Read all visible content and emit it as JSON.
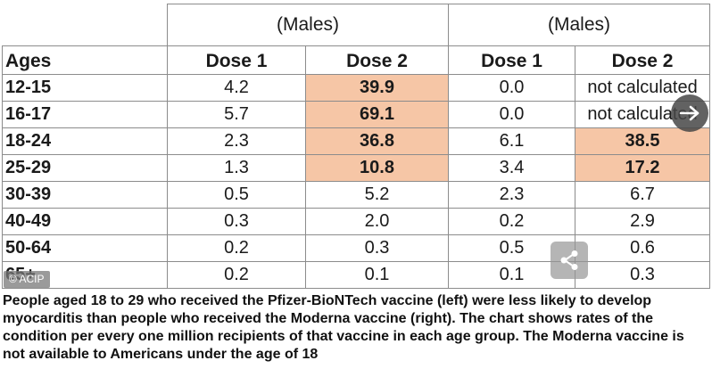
{
  "table": {
    "group_headers": [
      "(Males)",
      "(Males)"
    ],
    "column_headers": [
      "Ages",
      "Dose 1",
      "Dose 2",
      "Dose 1",
      "Dose 2"
    ],
    "rows": [
      {
        "age": "12-15",
        "p_d1": "4.2",
        "p_d2": "39.9",
        "m_d1": "0.0",
        "m_d2": "not calculated"
      },
      {
        "age": "16-17",
        "p_d1": "5.7",
        "p_d2": "69.1",
        "m_d1": "0.0",
        "m_d2": "not calculated"
      },
      {
        "age": "18-24",
        "p_d1": "2.3",
        "p_d2": "36.8",
        "m_d1": "6.1",
        "m_d2": "38.5"
      },
      {
        "age": "25-29",
        "p_d1": "1.3",
        "p_d2": "10.8",
        "m_d1": "3.4",
        "m_d2": "17.2"
      },
      {
        "age": "30-39",
        "p_d1": "0.5",
        "p_d2": "5.2",
        "m_d1": "2.3",
        "m_d2": "6.7"
      },
      {
        "age": "40-49",
        "p_d1": "0.3",
        "p_d2": "2.0",
        "m_d1": "0.2",
        "m_d2": "2.9"
      },
      {
        "age": "50-64",
        "p_d1": "0.2",
        "p_d2": "0.3",
        "m_d1": "0.5",
        "m_d2": "0.6"
      },
      {
        "age": "65+",
        "p_d1": "0.2",
        "p_d2": "0.1",
        "m_d1": "0.1",
        "m_d2": "0.3"
      }
    ],
    "highlight_color": "#f6c6a6"
  },
  "image_credit": "© ACIP",
  "icons": {
    "next": "arrow-right-icon",
    "share": "share-icon"
  },
  "caption": "People aged 18 to 29 who received the Pfizer-BioNTech vaccine (left) were less likely to develop myocarditis than people who received the Moderna vaccine (right). The chart shows rates of the condition per every one million recipients of that vaccine in each age group. The Moderna vaccine is not available to Americans under the age of 18"
}
